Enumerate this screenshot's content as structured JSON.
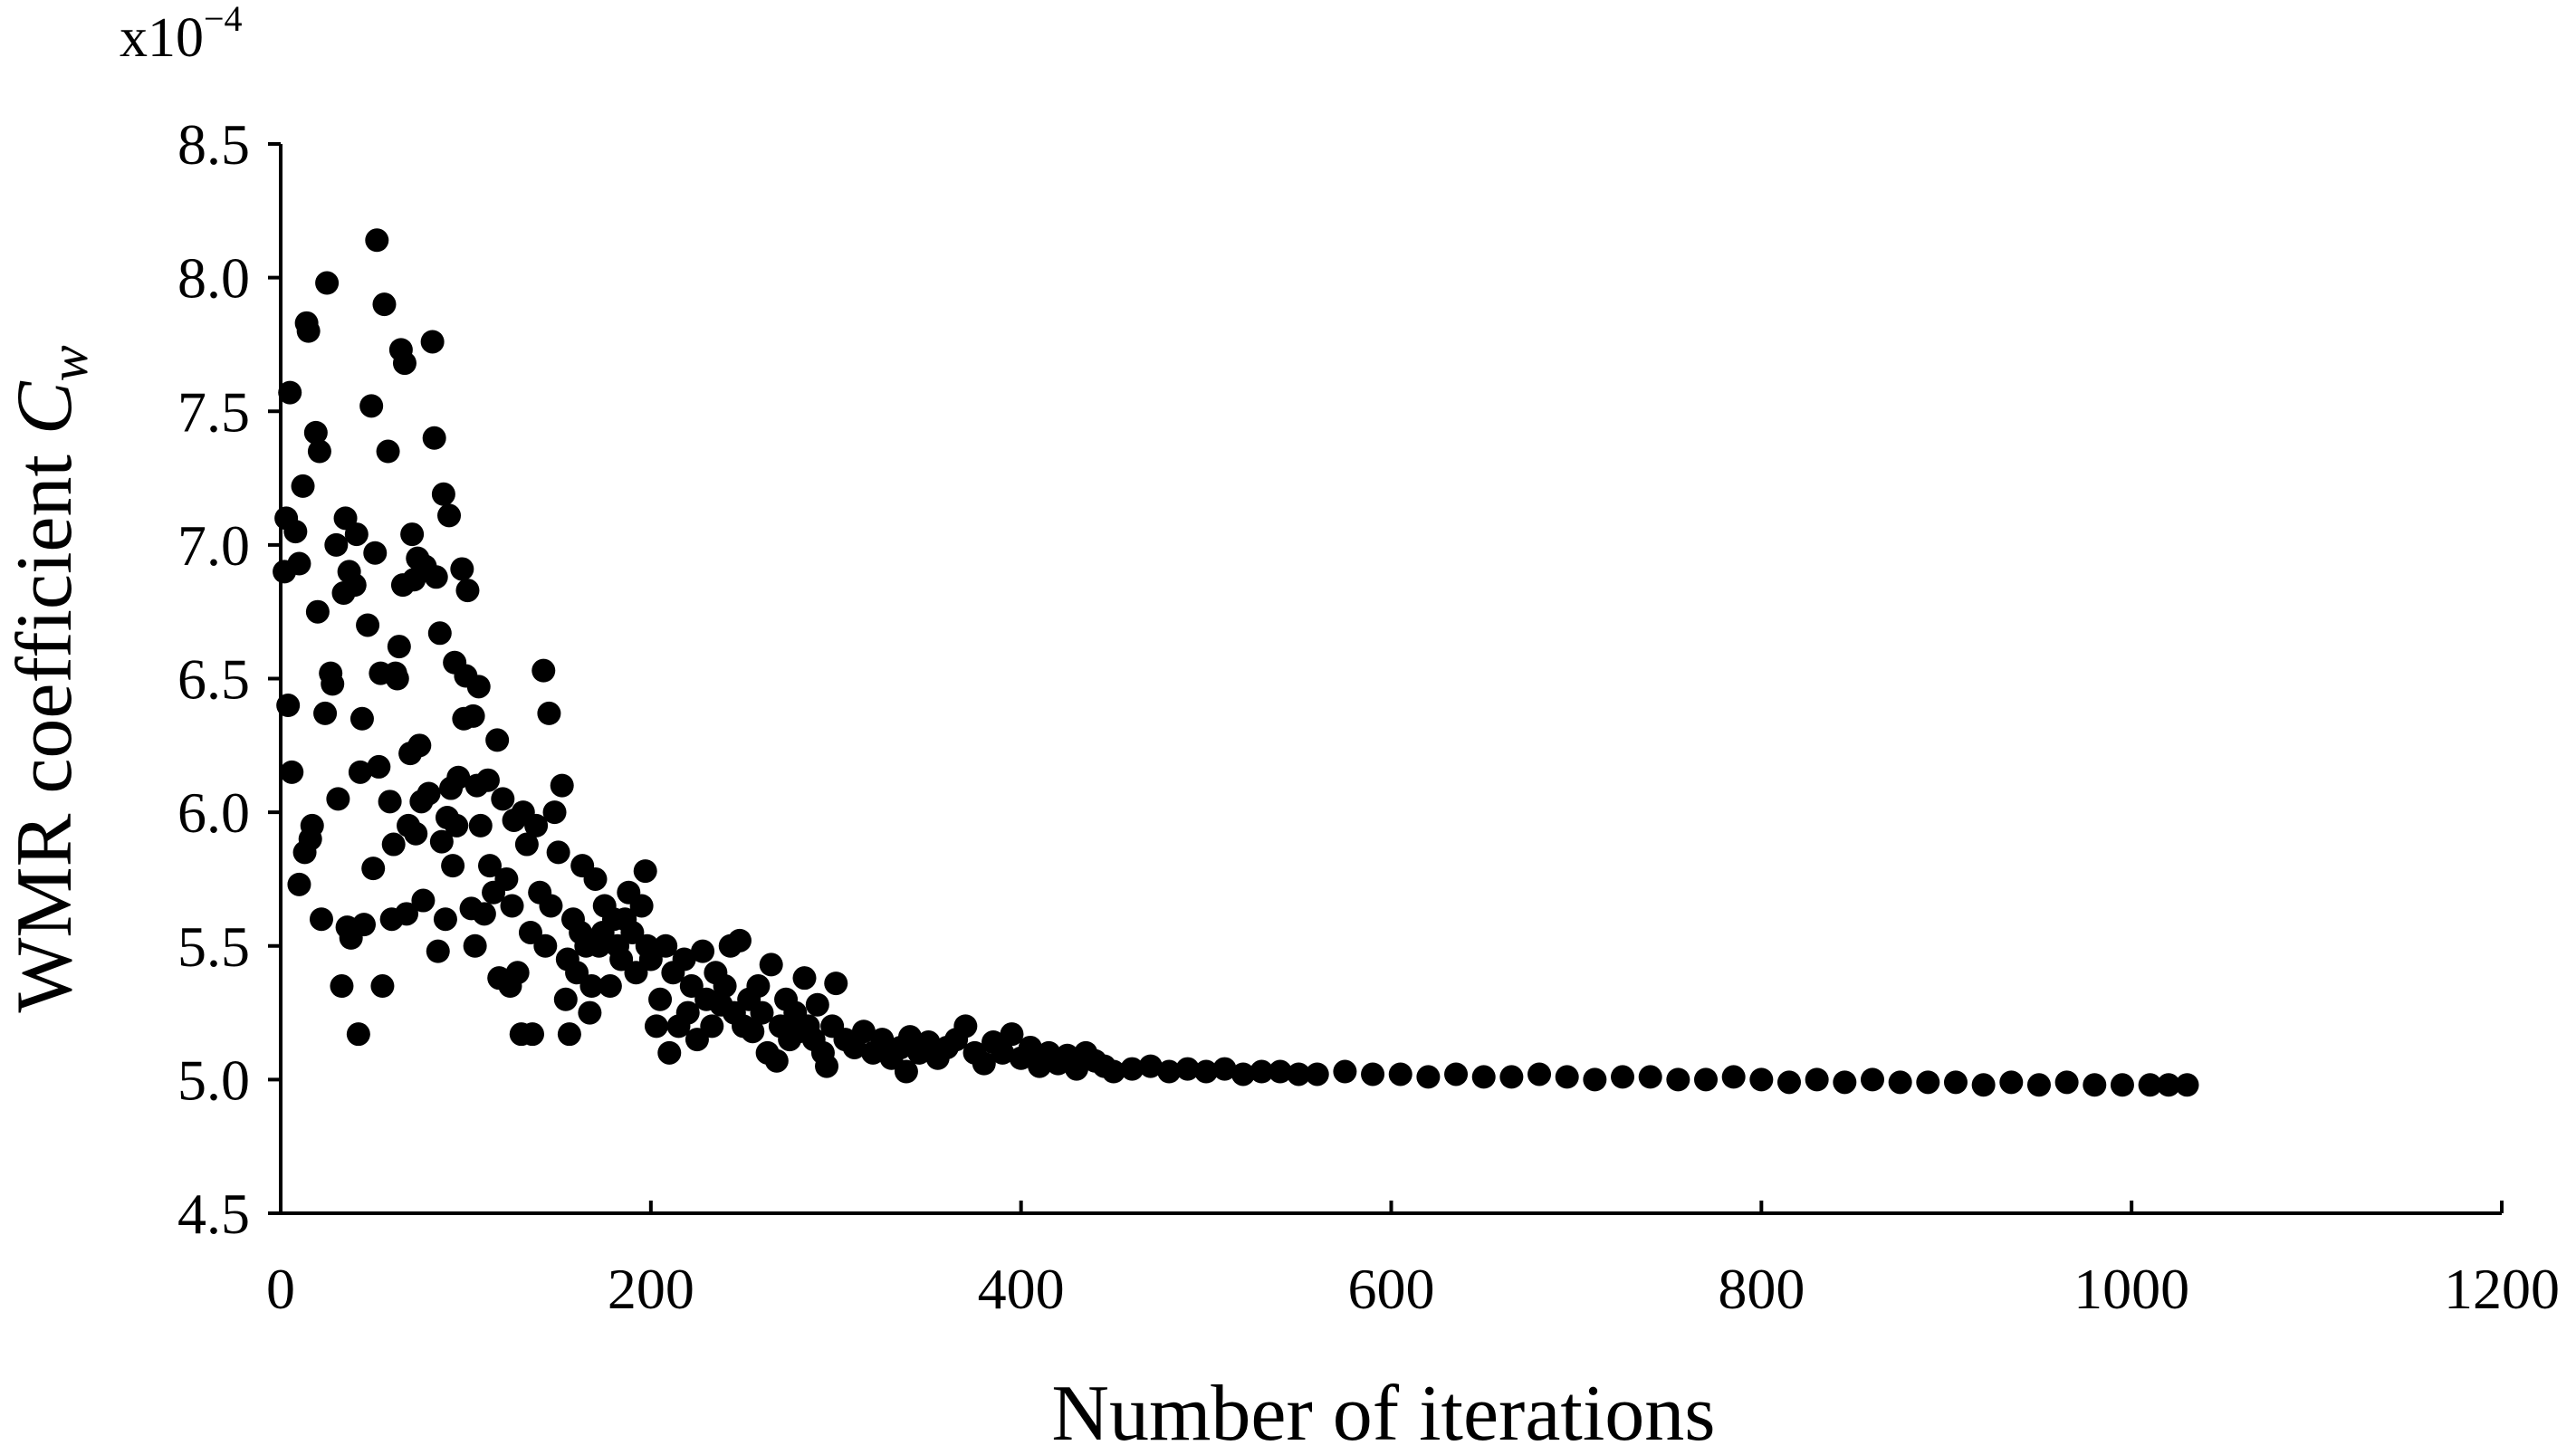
{
  "chart_data": {
    "type": "scatter",
    "multiplier": {
      "text": "x10",
      "exponent": "−4"
    },
    "x_label": "Number of iterations",
    "y_label": {
      "text": "WMR coefficient ",
      "symbol": "C",
      "subscript": "w"
    },
    "color": "#000000",
    "xlim": [
      0,
      1200
    ],
    "xticks": [
      0,
      200,
      400,
      600,
      800,
      1000,
      1200
    ],
    "ylim": [
      4.5,
      8.5
    ],
    "yticks": [
      4.5,
      {
        "value": 5,
        "label": "5.0"
      },
      5.5,
      {
        "value": 6,
        "label": "6.0"
      },
      6.5,
      {
        "value": 7,
        "label": "7.0"
      },
      7.5,
      {
        "value": 8,
        "label": "8.0"
      },
      8.5
    ],
    "points": [
      [
        2,
        6.9
      ],
      [
        3,
        7.1
      ],
      [
        4,
        6.4
      ],
      [
        5,
        7.57
      ],
      [
        6,
        6.15
      ],
      [
        8,
        7.05
      ],
      [
        10,
        5.73
      ],
      [
        10,
        6.93
      ],
      [
        12,
        7.22
      ],
      [
        13,
        5.85
      ],
      [
        14,
        7.83
      ],
      [
        15,
        7.8
      ],
      [
        16,
        5.9
      ],
      [
        17,
        5.95
      ],
      [
        19,
        7.42
      ],
      [
        20,
        6.75
      ],
      [
        21,
        7.35
      ],
      [
        22,
        5.6
      ],
      [
        24,
        6.37
      ],
      [
        25,
        7.98
      ],
      [
        27,
        6.52
      ],
      [
        28,
        6.48
      ],
      [
        30,
        7.0
      ],
      [
        31,
        6.05
      ],
      [
        33,
        5.35
      ],
      [
        34,
        6.82
      ],
      [
        35,
        7.1
      ],
      [
        36,
        5.57
      ],
      [
        37,
        6.9
      ],
      [
        38,
        5.53
      ],
      [
        40,
        6.85
      ],
      [
        41,
        7.04
      ],
      [
        42,
        5.17
      ],
      [
        43,
        6.15
      ],
      [
        44,
        6.35
      ],
      [
        45,
        5.58
      ],
      [
        47,
        6.7
      ],
      [
        49,
        7.52
      ],
      [
        50,
        5.79
      ],
      [
        51,
        6.97
      ],
      [
        52,
        8.14
      ],
      [
        53,
        6.17
      ],
      [
        54,
        6.52
      ],
      [
        55,
        5.35
      ],
      [
        56,
        7.9
      ],
      [
        58,
        7.35
      ],
      [
        59,
        6.04
      ],
      [
        60,
        5.6
      ],
      [
        61,
        5.88
      ],
      [
        62,
        6.52
      ],
      [
        63,
        6.5
      ],
      [
        64,
        6.62
      ],
      [
        65,
        7.73
      ],
      [
        66,
        6.85
      ],
      [
        67,
        7.68
      ],
      [
        68,
        5.62
      ],
      [
        69,
        5.95
      ],
      [
        70,
        6.22
      ],
      [
        71,
        7.04
      ],
      [
        72,
        6.87
      ],
      [
        73,
        5.92
      ],
      [
        74,
        6.95
      ],
      [
        75,
        6.25
      ],
      [
        76,
        6.04
      ],
      [
        77,
        5.67
      ],
      [
        78,
        6.92
      ],
      [
        80,
        6.07
      ],
      [
        82,
        7.76
      ],
      [
        83,
        7.4
      ],
      [
        84,
        6.88
      ],
      [
        85,
        5.48
      ],
      [
        86,
        6.67
      ],
      [
        87,
        5.89
      ],
      [
        88,
        7.19
      ],
      [
        89,
        5.6
      ],
      [
        90,
        5.98
      ],
      [
        91,
        7.11
      ],
      [
        92,
        6.09
      ],
      [
        93,
        5.8
      ],
      [
        94,
        6.56
      ],
      [
        95,
        5.95
      ],
      [
        96,
        6.13
      ],
      [
        98,
        6.91
      ],
      [
        99,
        6.35
      ],
      [
        100,
        6.51
      ],
      [
        101,
        6.83
      ],
      [
        103,
        5.64
      ],
      [
        104,
        6.36
      ],
      [
        105,
        5.5
      ],
      [
        106,
        6.1
      ],
      [
        107,
        6.47
      ],
      [
        108,
        5.95
      ],
      [
        110,
        5.62
      ],
      [
        112,
        6.12
      ],
      [
        113,
        5.8
      ],
      [
        115,
        5.7
      ],
      [
        117,
        6.27
      ],
      [
        118,
        5.38
      ],
      [
        120,
        6.05
      ],
      [
        122,
        5.75
      ],
      [
        124,
        5.35
      ],
      [
        125,
        5.65
      ],
      [
        126,
        5.97
      ],
      [
        128,
        5.4
      ],
      [
        130,
        5.17
      ],
      [
        131,
        6.0
      ],
      [
        133,
        5.88
      ],
      [
        135,
        5.55
      ],
      [
        136,
        5.17
      ],
      [
        138,
        5.95
      ],
      [
        140,
        5.7
      ],
      [
        142,
        6.53
      ],
      [
        143,
        5.5
      ],
      [
        145,
        6.37
      ],
      [
        146,
        5.65
      ],
      [
        148,
        6.0
      ],
      [
        150,
        5.85
      ],
      [
        152,
        6.1
      ],
      [
        154,
        5.3
      ],
      [
        155,
        5.45
      ],
      [
        156,
        5.17
      ],
      [
        158,
        5.6
      ],
      [
        160,
        5.4
      ],
      [
        162,
        5.55
      ],
      [
        163,
        5.8
      ],
      [
        165,
        5.5
      ],
      [
        167,
        5.25
      ],
      [
        168,
        5.35
      ],
      [
        170,
        5.75
      ],
      [
        172,
        5.5
      ],
      [
        174,
        5.55
      ],
      [
        175,
        5.65
      ],
      [
        178,
        5.35
      ],
      [
        180,
        5.6
      ],
      [
        182,
        5.5
      ],
      [
        184,
        5.45
      ],
      [
        186,
        5.6
      ],
      [
        188,
        5.7
      ],
      [
        190,
        5.55
      ],
      [
        192,
        5.4
      ],
      [
        195,
        5.65
      ],
      [
        197,
        5.78
      ],
      [
        198,
        5.5
      ],
      [
        200,
        5.45
      ],
      [
        203,
        5.2
      ],
      [
        205,
        5.3
      ],
      [
        208,
        5.5
      ],
      [
        210,
        5.1
      ],
      [
        212,
        5.4
      ],
      [
        215,
        5.2
      ],
      [
        218,
        5.45
      ],
      [
        220,
        5.25
      ],
      [
        222,
        5.35
      ],
      [
        225,
        5.15
      ],
      [
        228,
        5.48
      ],
      [
        230,
        5.3
      ],
      [
        233,
        5.2
      ],
      [
        235,
        5.4
      ],
      [
        238,
        5.28
      ],
      [
        240,
        5.35
      ],
      [
        243,
        5.5
      ],
      [
        245,
        5.25
      ],
      [
        248,
        5.52
      ],
      [
        250,
        5.2
      ],
      [
        253,
        5.3
      ],
      [
        255,
        5.18
      ],
      [
        258,
        5.35
      ],
      [
        260,
        5.25
      ],
      [
        263,
        5.1
      ],
      [
        265,
        5.43
      ],
      [
        268,
        5.07
      ],
      [
        270,
        5.2
      ],
      [
        273,
        5.3
      ],
      [
        275,
        5.15
      ],
      [
        278,
        5.25
      ],
      [
        280,
        5.18
      ],
      [
        283,
        5.38
      ],
      [
        285,
        5.2
      ],
      [
        288,
        5.15
      ],
      [
        290,
        5.28
      ],
      [
        293,
        5.1
      ],
      [
        295,
        5.05
      ],
      [
        298,
        5.2
      ],
      [
        300,
        5.36
      ],
      [
        305,
        5.15
      ],
      [
        310,
        5.12
      ],
      [
        315,
        5.18
      ],
      [
        320,
        5.1
      ],
      [
        325,
        5.15
      ],
      [
        330,
        5.08
      ],
      [
        335,
        5.12
      ],
      [
        338,
        5.03
      ],
      [
        340,
        5.16
      ],
      [
        345,
        5.1
      ],
      [
        350,
        5.14
      ],
      [
        355,
        5.08
      ],
      [
        360,
        5.12
      ],
      [
        365,
        5.15
      ],
      [
        370,
        5.2
      ],
      [
        375,
        5.1
      ],
      [
        380,
        5.06
      ],
      [
        385,
        5.14
      ],
      [
        390,
        5.1
      ],
      [
        395,
        5.17
      ],
      [
        400,
        5.08
      ],
      [
        405,
        5.12
      ],
      [
        410,
        5.05
      ],
      [
        415,
        5.1
      ],
      [
        420,
        5.06
      ],
      [
        425,
        5.09
      ],
      [
        430,
        5.04
      ],
      [
        435,
        5.1
      ],
      [
        440,
        5.07
      ],
      [
        445,
        5.05
      ],
      [
        450,
        5.03
      ],
      [
        460,
        5.04
      ],
      [
        470,
        5.05
      ],
      [
        480,
        5.03
      ],
      [
        490,
        5.04
      ],
      [
        500,
        5.03
      ],
      [
        510,
        5.04
      ],
      [
        520,
        5.02
      ],
      [
        530,
        5.03
      ],
      [
        540,
        5.03
      ],
      [
        550,
        5.02
      ],
      [
        560,
        5.02
      ],
      [
        575,
        5.03
      ],
      [
        590,
        5.02
      ],
      [
        605,
        5.02
      ],
      [
        620,
        5.01
      ],
      [
        635,
        5.02
      ],
      [
        650,
        5.01
      ],
      [
        665,
        5.01
      ],
      [
        680,
        5.02
      ],
      [
        695,
        5.01
      ],
      [
        710,
        5.0
      ],
      [
        725,
        5.01
      ],
      [
        740,
        5.01
      ],
      [
        755,
        5.0
      ],
      [
        770,
        5.0
      ],
      [
        785,
        5.01
      ],
      [
        800,
        5.0
      ],
      [
        815,
        4.99
      ],
      [
        830,
        5.0
      ],
      [
        845,
        4.99
      ],
      [
        860,
        5.0
      ],
      [
        875,
        4.99
      ],
      [
        890,
        4.99
      ],
      [
        905,
        4.99
      ],
      [
        920,
        4.98
      ],
      [
        935,
        4.99
      ],
      [
        950,
        4.98
      ],
      [
        965,
        4.99
      ],
      [
        980,
        4.98
      ],
      [
        995,
        4.98
      ],
      [
        1010,
        4.98
      ],
      [
        1020,
        4.98
      ],
      [
        1030,
        4.98
      ]
    ]
  }
}
